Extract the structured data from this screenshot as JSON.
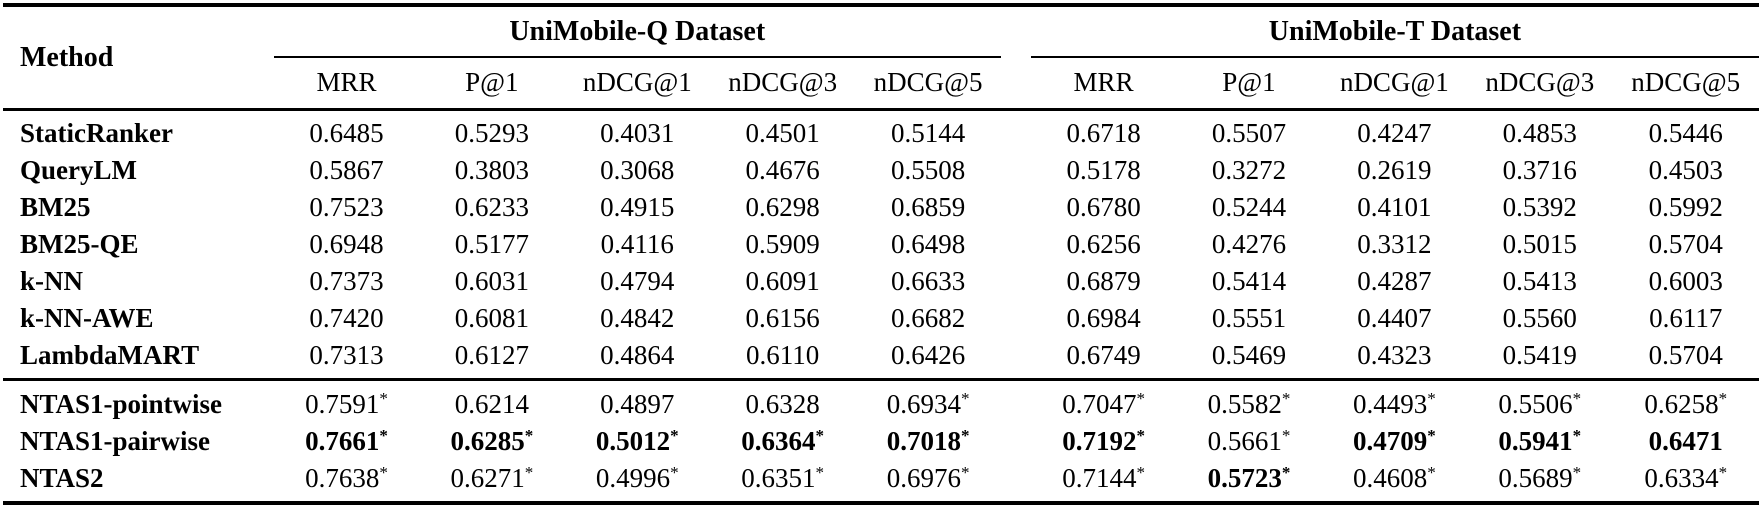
{
  "page": {
    "background_color": "#ffffff",
    "text_color": "#000000"
  },
  "table": {
    "method_header": "Method",
    "groups": [
      {
        "label": "UniMobile-Q Dataset"
      },
      {
        "label": "UniMobile-T Dataset"
      }
    ],
    "metric_headers": [
      "MRR",
      "P@1",
      "nDCG@1",
      "nDCG@3",
      "nDCG@5"
    ],
    "significance_marker": "*",
    "baseline_rows": [
      {
        "method": "StaticRanker",
        "q": [
          "0.6485",
          "0.5293",
          "0.4031",
          "0.4501",
          "0.5144"
        ],
        "t": [
          "0.6718",
          "0.5507",
          "0.4247",
          "0.4853",
          "0.5446"
        ]
      },
      {
        "method": "QueryLM",
        "q": [
          "0.5867",
          "0.3803",
          "0.3068",
          "0.4676",
          "0.5508"
        ],
        "t": [
          "0.5178",
          "0.3272",
          "0.2619",
          "0.3716",
          "0.4503"
        ]
      },
      {
        "method": "BM25",
        "q": [
          "0.7523",
          "0.6233",
          "0.4915",
          "0.6298",
          "0.6859"
        ],
        "t": [
          "0.6780",
          "0.5244",
          "0.4101",
          "0.5392",
          "0.5992"
        ]
      },
      {
        "method": "BM25-QE",
        "q": [
          "0.6948",
          "0.5177",
          "0.4116",
          "0.5909",
          "0.6498"
        ],
        "t": [
          "0.6256",
          "0.4276",
          "0.3312",
          "0.5015",
          "0.5704"
        ]
      },
      {
        "method": "k-NN",
        "q": [
          "0.7373",
          "0.6031",
          "0.4794",
          "0.6091",
          "0.6633"
        ],
        "t": [
          "0.6879",
          "0.5414",
          "0.4287",
          "0.5413",
          "0.6003"
        ]
      },
      {
        "method": "k-NN-AWE",
        "q": [
          "0.7420",
          "0.6081",
          "0.4842",
          "0.6156",
          "0.6682"
        ],
        "t": [
          "0.6984",
          "0.5551",
          "0.4407",
          "0.5560",
          "0.6117"
        ]
      },
      {
        "method": "LambdaMART",
        "q": [
          "0.7313",
          "0.6127",
          "0.4864",
          "0.6110",
          "0.6426"
        ],
        "t": [
          "0.6749",
          "0.5469",
          "0.4323",
          "0.5419",
          "0.5704"
        ]
      }
    ],
    "ntas_rows": [
      {
        "method": "NTAS1-pointwise",
        "q": [
          {
            "v": "0.7591",
            "star": true
          },
          {
            "v": "0.6214"
          },
          {
            "v": "0.4897"
          },
          {
            "v": "0.6328"
          },
          {
            "v": "0.6934",
            "star": true
          }
        ],
        "t": [
          {
            "v": "0.7047",
            "star": true
          },
          {
            "v": "0.5582",
            "star": true
          },
          {
            "v": "0.4493",
            "star": true
          },
          {
            "v": "0.5506",
            "star": true
          },
          {
            "v": "0.6258",
            "star": true
          }
        ]
      },
      {
        "method": "NTAS1-pairwise",
        "q": [
          {
            "v": "0.7661",
            "star": true,
            "bold": true
          },
          {
            "v": "0.6285",
            "star": true,
            "bold": true
          },
          {
            "v": "0.5012",
            "star": true,
            "bold": true
          },
          {
            "v": "0.6364",
            "star": true,
            "bold": true
          },
          {
            "v": "0.7018",
            "star": true,
            "bold": true
          }
        ],
        "t": [
          {
            "v": "0.7192",
            "star": true,
            "bold": true
          },
          {
            "v": "0.5661",
            "star": true
          },
          {
            "v": "0.4709",
            "star": true,
            "bold": true
          },
          {
            "v": "0.5941",
            "star": true,
            "bold": true
          },
          {
            "v": "0.6471",
            "bold": true
          }
        ]
      },
      {
        "method": "NTAS2",
        "q": [
          {
            "v": "0.7638",
            "star": true
          },
          {
            "v": "0.6271",
            "star": true
          },
          {
            "v": "0.4996",
            "star": true
          },
          {
            "v": "0.6351",
            "star": true
          },
          {
            "v": "0.6976",
            "star": true
          }
        ],
        "t": [
          {
            "v": "0.7144",
            "star": true
          },
          {
            "v": "0.5723",
            "star": true,
            "bold": true
          },
          {
            "v": "0.4608",
            "star": true
          },
          {
            "v": "0.5689",
            "star": true
          },
          {
            "v": "0.6334",
            "star": true
          }
        ]
      }
    ]
  }
}
